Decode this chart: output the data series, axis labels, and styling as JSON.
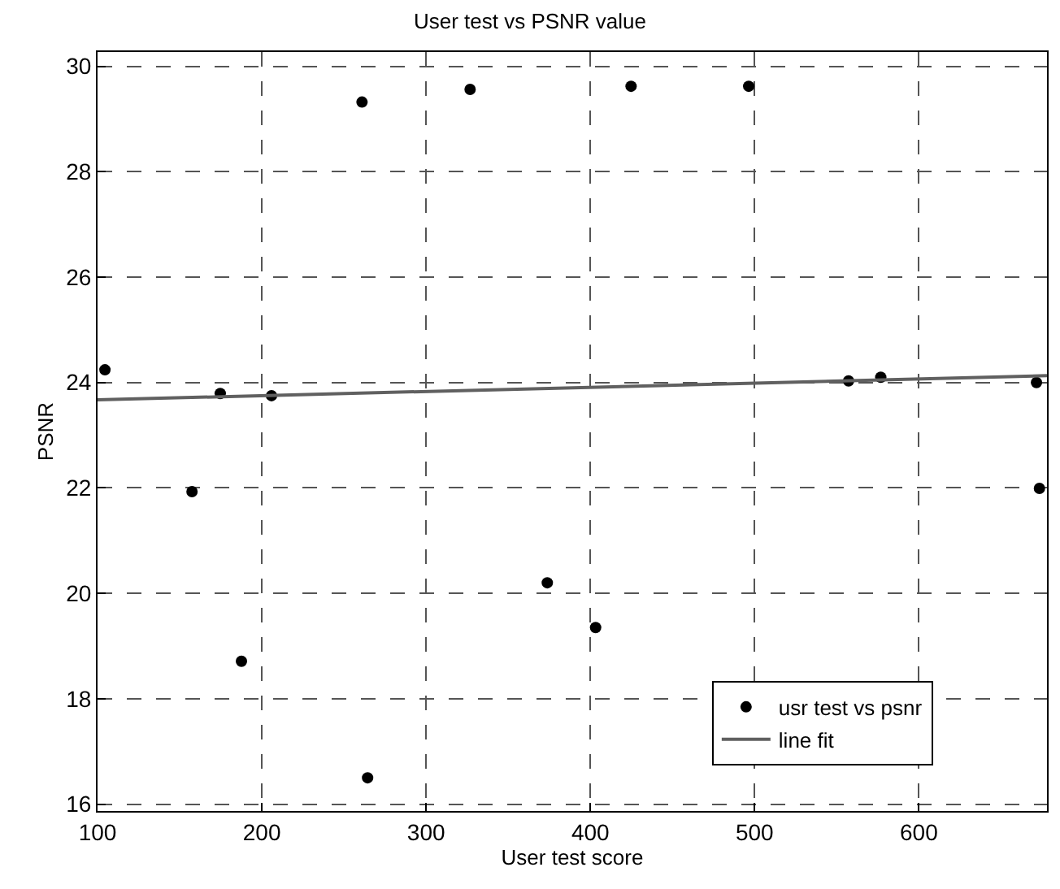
{
  "chart_data": {
    "type": "scatter",
    "title": "User test vs PSNR value",
    "xlabel": "User test score",
    "ylabel": "PSNR",
    "xlim": [
      100,
      678
    ],
    "ylim": [
      15.87,
      30.27
    ],
    "xticks": [
      100,
      200,
      300,
      400,
      500,
      600
    ],
    "yticks": [
      16,
      18,
      20,
      22,
      24,
      26,
      28,
      30
    ],
    "grid": true,
    "legend": "bottom right",
    "marker": "circle",
    "series": [
      {
        "name": "usr test vs psnr",
        "color": "#000000",
        "x": [
          104.5,
          157.5,
          174.7,
          187.6,
          205.9,
          261,
          264.4,
          326.8,
          373.8,
          403.2,
          424.8,
          496.4,
          557.2,
          576.8,
          671.6,
          673.4
        ],
        "values": [
          24.24,
          21.93,
          23.79,
          18.71,
          23.75,
          29.32,
          16.5,
          29.56,
          20.2,
          19.35,
          29.62,
          29.62,
          24.03,
          24.1,
          24.0,
          21.99
        ]
      },
      {
        "name": "line fit",
        "type": "line",
        "color": "#606060",
        "line_style": "solid",
        "marker": "none",
        "x": [
          100,
          678
        ],
        "values": [
          23.67,
          24.13
        ]
      }
    ]
  }
}
